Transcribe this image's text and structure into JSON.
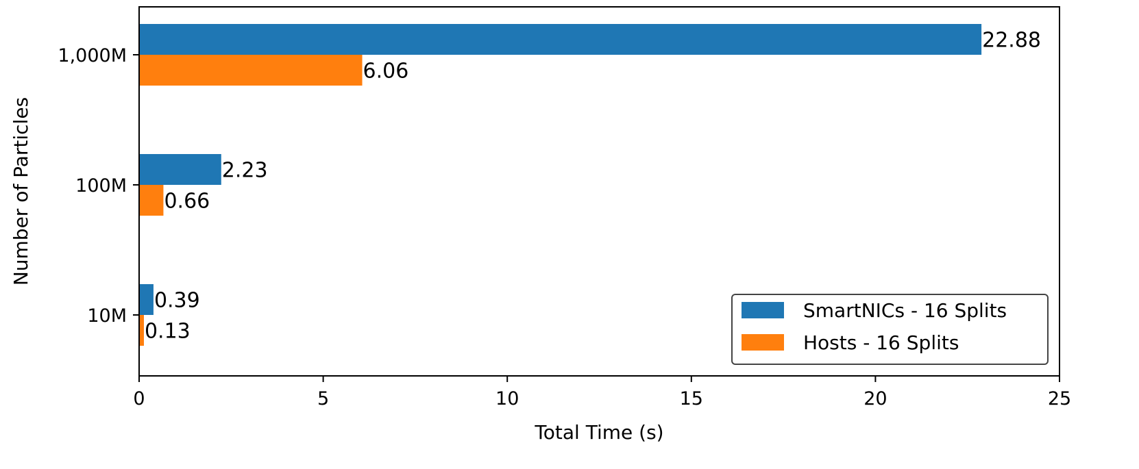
{
  "chart_data": {
    "type": "bar",
    "orientation": "horizontal",
    "categories": [
      "10M",
      "100M",
      "1,000M"
    ],
    "series": [
      {
        "name": "SmartNICs - 16 Splits",
        "values": [
          0.39,
          2.23,
          22.88
        ],
        "labels": [
          "0.39",
          "2.23",
          "22.88"
        ],
        "color": "#1f77b4"
      },
      {
        "name": "Hosts - 16 Splits",
        "values": [
          0.13,
          0.66,
          6.06
        ],
        "labels": [
          "0.13",
          "0.66",
          "6.06"
        ],
        "color": "#ff7f0e"
      }
    ],
    "xlabel": "Total Time (s)",
    "ylabel": "Number of Particles",
    "xlim": [
      0,
      25
    ],
    "xticks": [
      0,
      5,
      10,
      15,
      20,
      25
    ],
    "xtick_labels": [
      "0",
      "5",
      "10",
      "15",
      "20",
      "25"
    ],
    "grid": false,
    "legend_position": "lower-right"
  }
}
